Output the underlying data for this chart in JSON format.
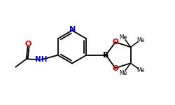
{
  "bg_color": "#ffffff",
  "atom_color_N": "#0000cc",
  "atom_color_O": "#cc0000",
  "atom_color_B": "#000000",
  "line_color": "#000000",
  "line_width": 1.3,
  "figsize": [
    2.5,
    1.5
  ],
  "dpi": 100,
  "xlim": [
    0,
    2.5
  ],
  "ylim": [
    0,
    1.5
  ]
}
